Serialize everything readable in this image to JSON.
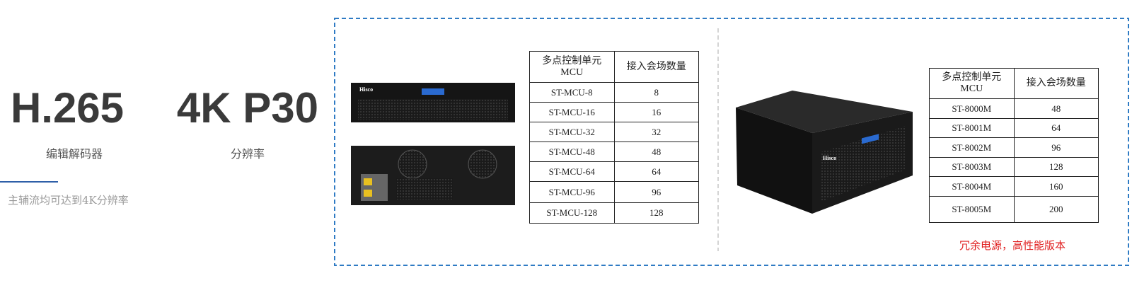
{
  "stats": [
    {
      "value": "H.265",
      "label": "编辑解码器"
    },
    {
      "value": "4K P30",
      "label": "分辨率"
    }
  ],
  "note": "主辅流均可达到4K分辨率",
  "brand": "Hisco",
  "table1": {
    "header": [
      [
        "多点控制单元",
        "MCU"
      ],
      [
        "接入会场数量"
      ]
    ],
    "rows": [
      [
        "ST-MCU-8",
        8
      ],
      [
        "ST-MCU-16",
        16
      ],
      [
        "ST-MCU-32",
        32
      ],
      [
        "ST-MCU-48",
        48
      ],
      [
        "ST-MCU-64",
        64
      ],
      [
        "ST-MCU-96",
        96
      ],
      [
        "ST-MCU-128",
        128
      ]
    ]
  },
  "table2": {
    "header": [
      [
        "多点控制单元",
        "MCU"
      ],
      [
        "接入会场数量"
      ]
    ],
    "rows": [
      [
        "ST-8000M",
        48
      ],
      [
        "ST-8001M",
        64
      ],
      [
        "ST-8002M",
        96
      ],
      [
        "ST-8003M",
        128
      ],
      [
        "ST-8004M",
        160
      ],
      [
        "ST-8005M",
        200
      ]
    ],
    "caption": "冗余电源，高性能版本"
  }
}
